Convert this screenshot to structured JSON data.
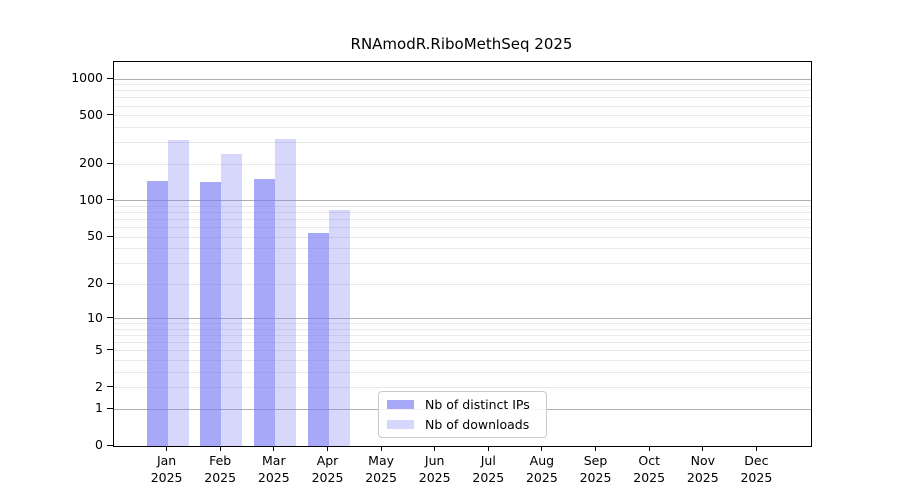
{
  "chart_data": {
    "type": "bar",
    "title": "RNAmodR.RiboMethSeq 2025",
    "categories": [
      "Jan",
      "Feb",
      "Mar",
      "Apr",
      "May",
      "Jun",
      "Jul",
      "Aug",
      "Sep",
      "Oct",
      "Nov",
      "Dec"
    ],
    "x_year_label": "2025",
    "series": [
      {
        "name": "Nb of distinct IPs",
        "color": "rgba(122,122,245,0.65)",
        "legend_swatch_color": "#a8a8f8",
        "values": [
          147,
          144,
          152,
          54,
          0,
          0,
          0,
          0,
          0,
          0,
          0,
          0
        ]
      },
      {
        "name": "Nb of downloads",
        "color": "rgba(122,122,245,0.30)",
        "legend_swatch_color": "#d7d7fb",
        "values": [
          317,
          242,
          323,
          84,
          0,
          0,
          0,
          0,
          0,
          0,
          0,
          0
        ]
      }
    ],
    "y_axis": {
      "scale": "log1p",
      "ticks": [
        0,
        1,
        2,
        5,
        10,
        20,
        50,
        100,
        200,
        500,
        1000
      ],
      "ylim": [
        0,
        1377
      ]
    },
    "x_axis": {
      "tick_label_format": "month over year, two lines"
    },
    "grid": {
      "on": true,
      "major_values": [
        1,
        10,
        100,
        1000
      ],
      "major_color": "#b0b0b0",
      "minor_color": "#e9e9e9"
    },
    "legend": {
      "position": "inside lower-center",
      "border_color": "#cbcbcb"
    }
  }
}
